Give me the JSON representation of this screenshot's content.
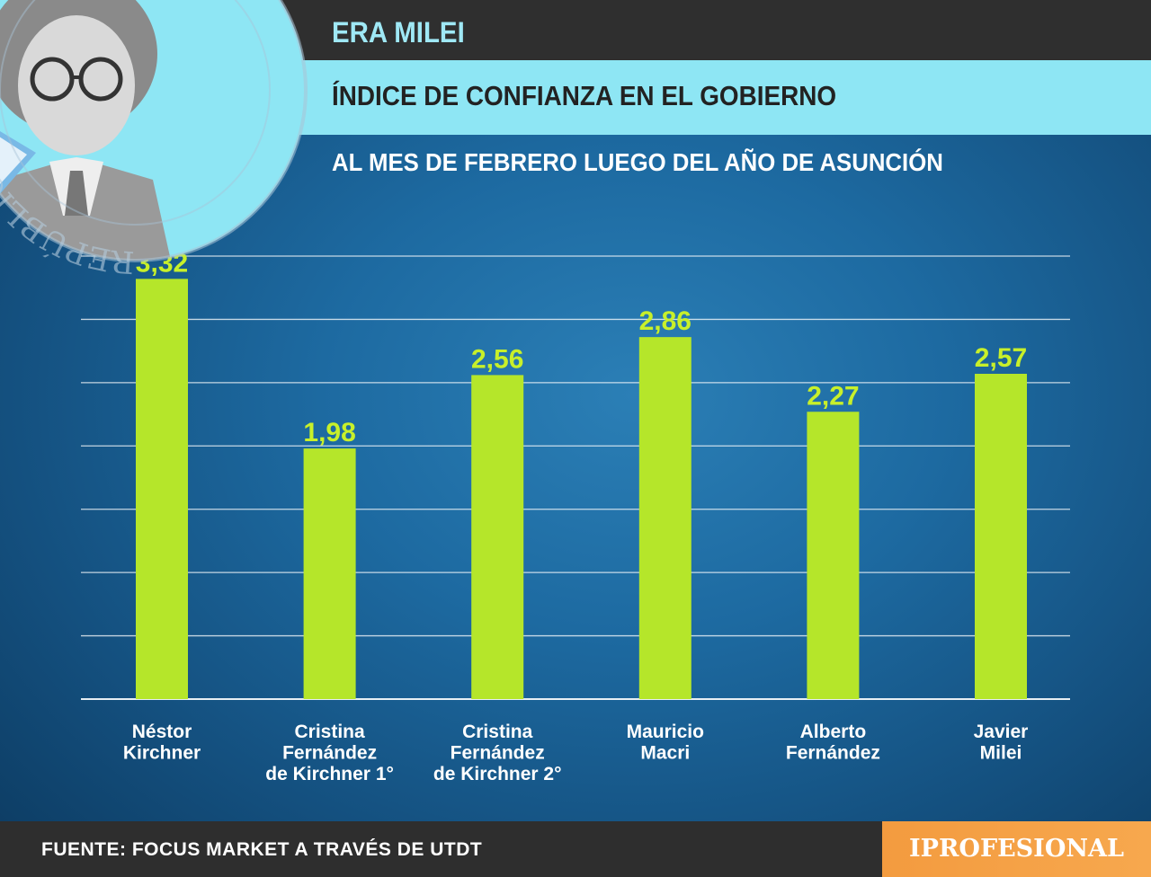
{
  "header": {
    "title": "ERA MILEI",
    "subtitle": "ÍNDICE DE CONFIANZA EN EL GOBIERNO",
    "note": "AL MES DE FEBRERO LUEGO DEL AÑO DE ASUNCIÓN"
  },
  "seal": {
    "text": "REPÚBLICA ARGENTINA"
  },
  "footer": {
    "source": "FUENTE: FOCUS MARKET A TRAVÉS DE UTDT",
    "brand": "IPROFESIONAL"
  },
  "colors": {
    "bar": "#b5e62a",
    "value_label": "#c8f02a",
    "gridline": "#ffffff",
    "header_dark": "#2f2f2f",
    "header_cyan": "#8ee6f4",
    "brand": "#f39b3f"
  },
  "chart_data": {
    "type": "bar",
    "categories": [
      [
        "Néstor",
        "Kirchner"
      ],
      [
        "Cristina",
        "Fernández",
        "de Kirchner 1°"
      ],
      [
        "Cristina",
        "Fernández",
        "de Kirchner 2°"
      ],
      [
        "Mauricio",
        "Macri"
      ],
      [
        "Alberto",
        "Fernández"
      ],
      [
        "Javier",
        "Milei"
      ]
    ],
    "values": [
      3.32,
      1.98,
      2.56,
      2.86,
      2.27,
      2.57
    ],
    "value_labels": [
      "3,32",
      "1,98",
      "2,56",
      "2,86",
      "2,27",
      "2,57"
    ],
    "ylim": [
      0,
      3.5
    ],
    "grid": true,
    "legend": "none"
  }
}
